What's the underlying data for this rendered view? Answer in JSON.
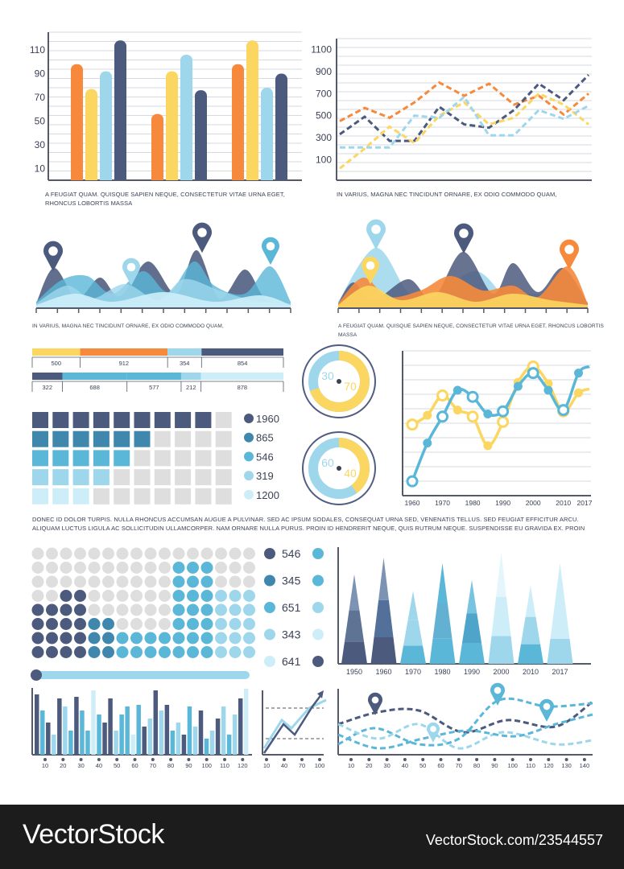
{
  "colors": {
    "navy": "#4c5a7e",
    "orange": "#f6893c",
    "yellow": "#fbd660",
    "lightblue": "#9ed7ec",
    "blue": "#5bb7d8",
    "paleblue": "#cdeef8",
    "grey": "#dedede",
    "axis": "#555a6b"
  },
  "captions": {
    "c1": "A feugiat quam. Quisque sapien neque, consectetur vitae urna eget, rhoncus lobortis massa",
    "c2": "In varius, magna nec tincidunt ornare, ex odio commodo quam,",
    "c3": "In varius, magna nec tincidunt ornare, ex odio commodo quam,",
    "c4": "A feugiat quam. Quisque sapien neque, consectetur vitae urna eget, rhoncus lobortis massa",
    "c5": "Donec id dolor turpis. Nulla rhoncus accumsan augue a pulvinar. Sed ac ipsum sodales, consequat urna sed, venenatis tellus. Sed feugiat efficitur arcu. Aliquam luctus ligula ac sollicitudin ullamcorper. Nam ornare nulla purus. Proin id hendrerit neque, quis rutrum neque. Suspendisse eu gravida ex. Proin"
  },
  "watermark": {
    "left": "VectorStock",
    "right": "VectorStock.com/23544557"
  },
  "chart_data": [
    {
      "type": "bar",
      "yticks": [
        "10",
        "30",
        "50",
        "70",
        "90",
        "110"
      ],
      "ylim": [
        0,
        125
      ],
      "groups": [
        {
          "values": [
            98,
            77,
            92,
            118
          ],
          "colors": [
            "orange",
            "yellow",
            "lightblue",
            "navy"
          ]
        },
        {
          "values": [
            56,
            92,
            106,
            76
          ],
          "colors": [
            "orange",
            "yellow",
            "lightblue",
            "navy"
          ]
        },
        {
          "values": [
            98,
            118,
            78,
            90
          ],
          "colors": [
            "orange",
            "yellow",
            "lightblue",
            "navy"
          ]
        }
      ]
    },
    {
      "type": "line",
      "yticks": [
        "100",
        "300",
        "500",
        "700",
        "900",
        "1100"
      ],
      "ylim": [
        0,
        1200
      ],
      "series": [
        {
          "color": "orange",
          "values": [
            450,
            570,
            480,
            620,
            800,
            680,
            790,
            600,
            680,
            510,
            700
          ]
        },
        {
          "color": "navy",
          "values": [
            330,
            490,
            270,
            270,
            580,
            420,
            390,
            550,
            790,
            640,
            870
          ]
        },
        {
          "color": "yellow",
          "values": [
            20,
            200,
            400,
            250,
            500,
            620,
            420,
            480,
            700,
            600,
            420
          ]
        },
        {
          "color": "lightblue",
          "values": [
            210,
            210,
            210,
            500,
            480,
            670,
            320,
            320,
            550,
            470,
            590
          ]
        }
      ]
    },
    {
      "type": "area",
      "series": [
        "navy",
        "blue",
        "lightblue",
        "paleblue"
      ]
    },
    {
      "type": "area",
      "series": [
        "navy",
        "orange",
        "yellow",
        "lightblue"
      ]
    },
    {
      "type": "bar",
      "orientation": "horizontal",
      "stacked": true,
      "rows": [
        {
          "values": [
            500,
            912,
            354,
            854
          ],
          "labels": [
            "500",
            "912",
            "354",
            "854"
          ]
        },
        {
          "values": [
            322,
            688,
            577,
            212,
            878
          ],
          "labels": [
            "322",
            "688",
            "577",
            "212",
            "878"
          ]
        }
      ]
    },
    {
      "type": "table",
      "legend": [
        "1960",
        "865",
        "546",
        "319",
        "1200"
      ],
      "filled": [
        9,
        6,
        5,
        4,
        3
      ]
    },
    {
      "type": "pie",
      "slices": [
        {
          "label": "30",
          "value": 30
        },
        {
          "label": "70",
          "value": 70
        }
      ]
    },
    {
      "type": "pie",
      "slices": [
        {
          "label": "60",
          "value": 60
        },
        {
          "label": "40",
          "value": 40
        }
      ]
    },
    {
      "type": "line",
      "x": [
        "1960",
        "1970",
        "1980",
        "1990",
        "2000",
        "2010",
        "2017"
      ],
      "ylim": [
        0,
        100
      ],
      "series": [
        {
          "color": "yellow",
          "points": [
            [
              1960,
              49
            ],
            [
              1965,
              56
            ],
            [
              1970,
              71
            ],
            [
              1975,
              60
            ],
            [
              1980,
              55
            ],
            [
              1985,
              33
            ],
            [
              1990,
              51
            ],
            [
              1995,
              81
            ],
            [
              2000,
              93
            ],
            [
              2005,
              80
            ],
            [
              2010,
              59
            ],
            [
              2015,
              73
            ]
          ]
        },
        {
          "color": "blue",
          "points": [
            [
              1960,
              6
            ],
            [
              1965,
              35
            ],
            [
              1970,
              55
            ],
            [
              1975,
              75
            ],
            [
              1980,
              70
            ],
            [
              1985,
              57
            ],
            [
              1990,
              59
            ],
            [
              1995,
              78
            ],
            [
              2000,
              88
            ],
            [
              2005,
              75
            ],
            [
              2010,
              60
            ],
            [
              2015,
              88
            ]
          ]
        }
      ]
    },
    {
      "type": "table",
      "legend": [
        "546",
        "345",
        "651",
        "343",
        "641"
      ],
      "heights": [
        6,
        3,
        2,
        5,
        9
      ]
    },
    {
      "type": "bar",
      "x": [
        "1950",
        "1960",
        "1970",
        "1980",
        "1990",
        "2000",
        "2010",
        "2017"
      ],
      "values": [
        80,
        95,
        65,
        90,
        75,
        100,
        70,
        90
      ]
    },
    {
      "type": "bar",
      "x": [
        "10",
        "20",
        "30",
        "40",
        "50",
        "60",
        "70",
        "80",
        "90",
        "100",
        "110",
        "120"
      ]
    },
    {
      "type": "line",
      "x": [
        "10",
        "40",
        "70",
        "100"
      ]
    },
    {
      "type": "line",
      "x": [
        "10",
        "20",
        "30",
        "40",
        "50",
        "60",
        "70",
        "80",
        "90",
        "100",
        "110",
        "120",
        "130",
        "140"
      ]
    }
  ]
}
